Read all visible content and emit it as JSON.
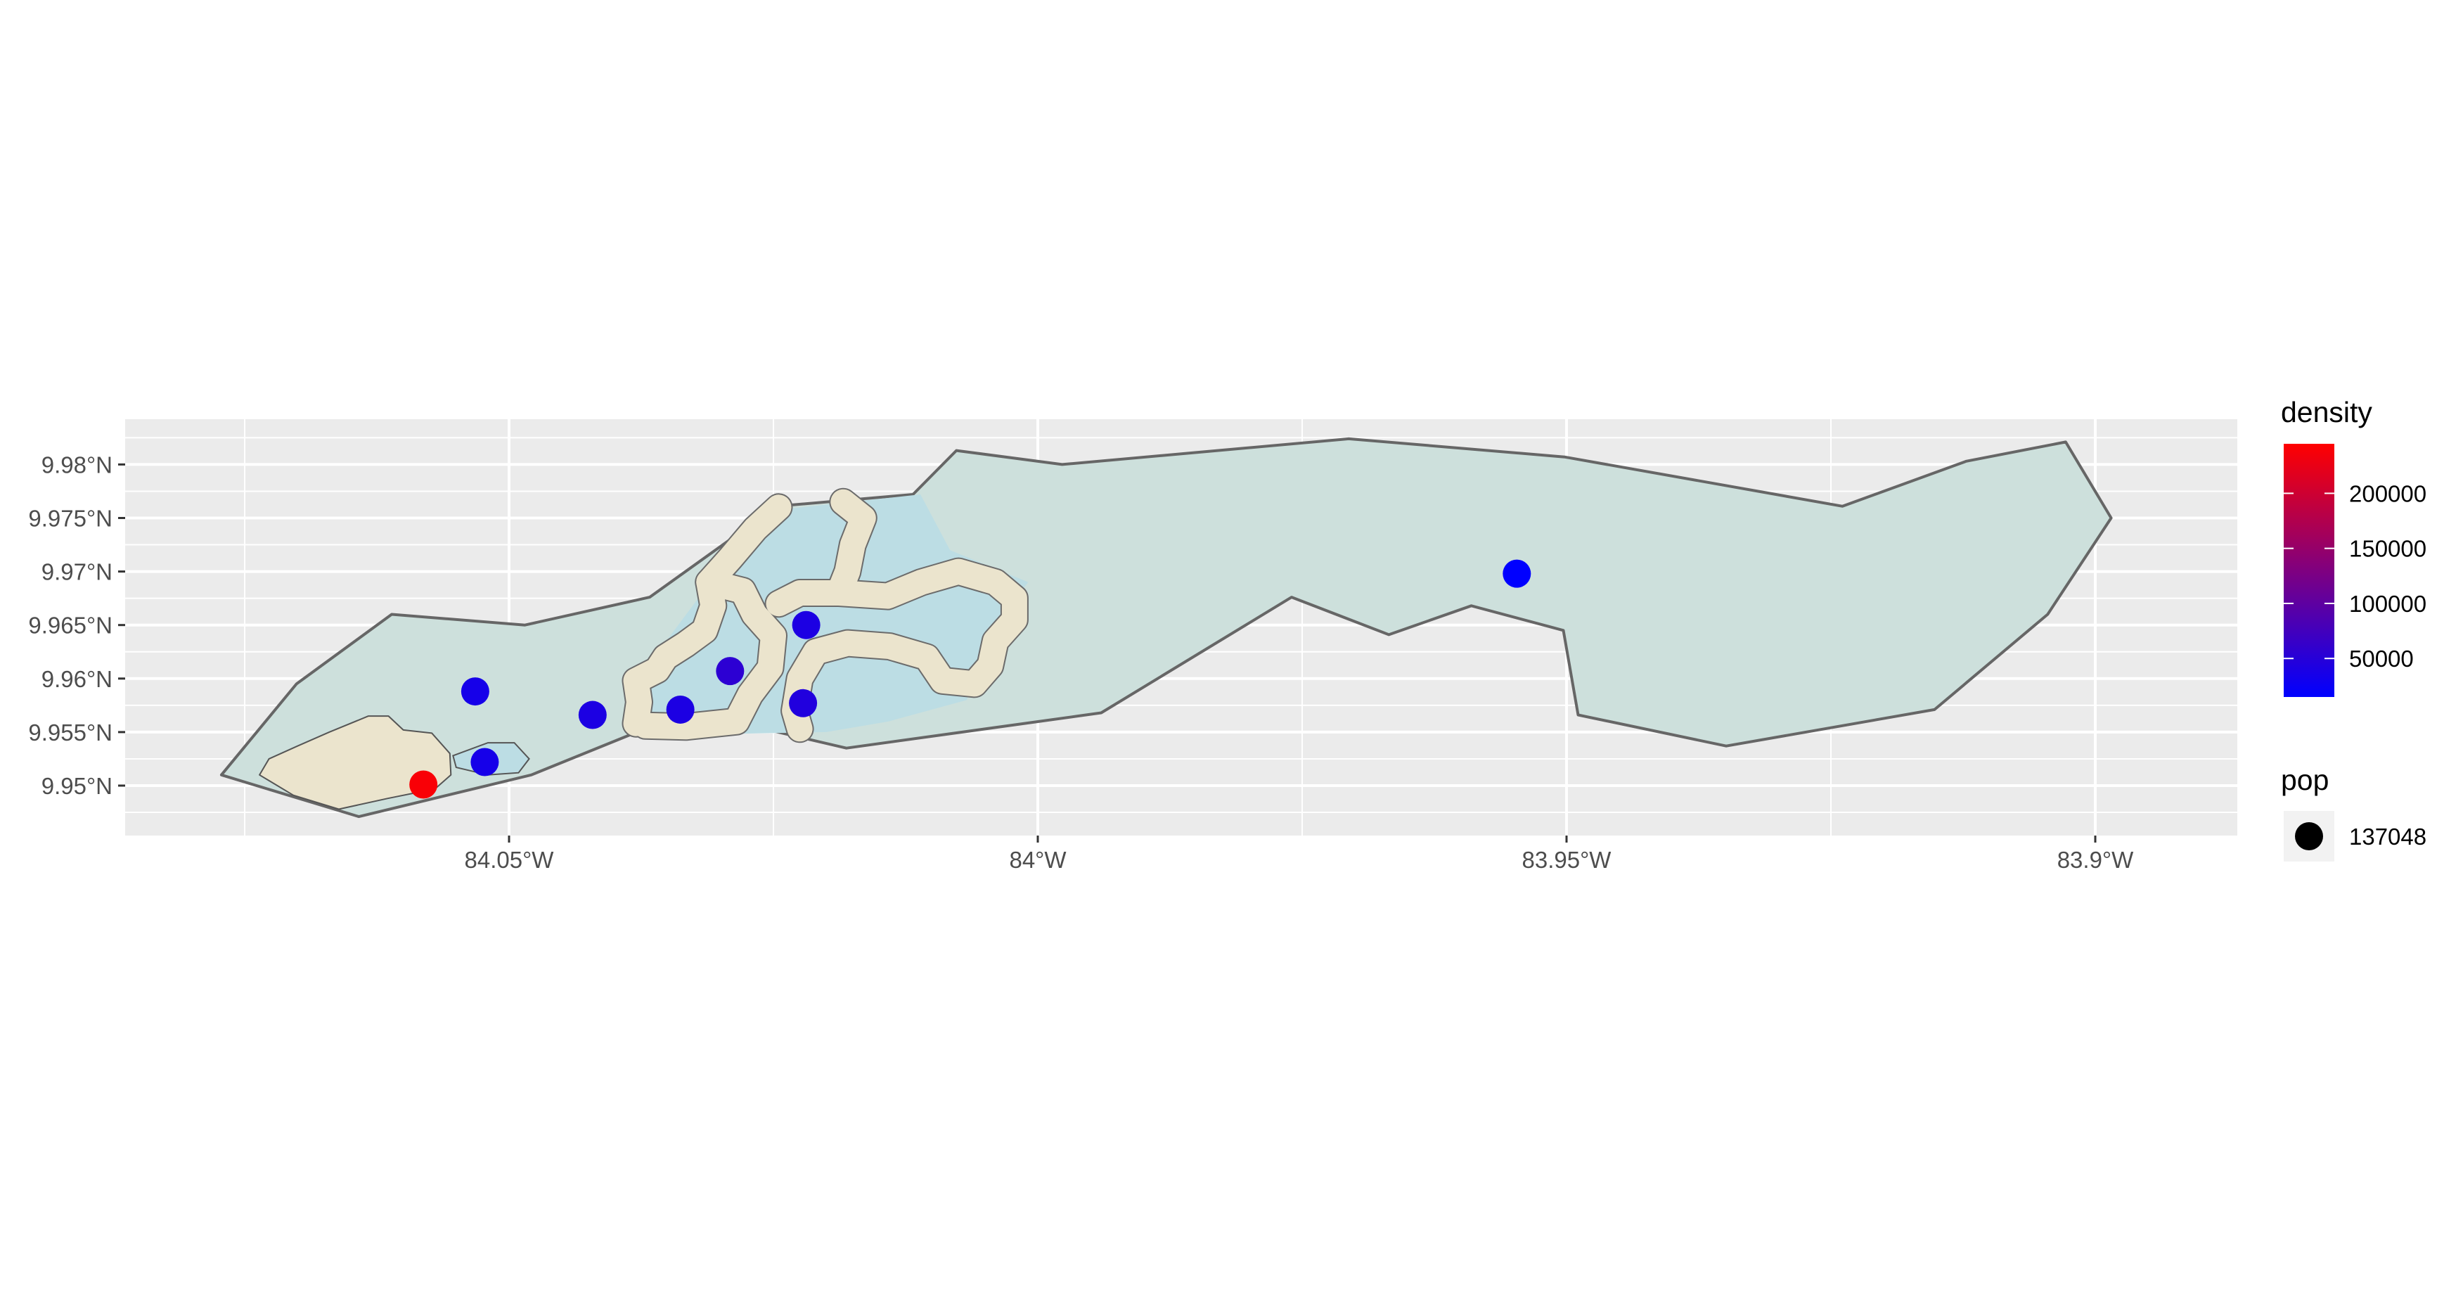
{
  "chart_data": {
    "type": "scatter",
    "subtype": "map",
    "title": "",
    "xlabel": "",
    "ylabel": "",
    "x_ticks": [
      "84.05°W",
      "84°W",
      "83.95°W",
      "83.9°W"
    ],
    "y_ticks": [
      "9.95°N",
      "9.955°N",
      "9.96°N",
      "9.965°N",
      "9.97°N",
      "9.975°N",
      "9.98°N"
    ],
    "grid": true,
    "legend_position": "right",
    "legends": {
      "density": {
        "title": "density",
        "type": "gradient",
        "colors": [
          "#0000ff",
          "#ff0000"
        ],
        "labels": [
          "50000",
          "100000",
          "150000",
          "200000"
        ],
        "label_values": [
          50000,
          100000,
          150000,
          200000
        ],
        "range": [
          15000,
          245000
        ]
      },
      "pop": {
        "title": "pop",
        "labels": [
          "137048"
        ]
      }
    },
    "colors": {
      "panel": "#ebebeb",
      "gridline": "#ffffff",
      "region_fill": "#cde0dc",
      "region_stroke": "#666666",
      "water_fill": "#bcdde4",
      "land_fill": "#ebe4cd"
    },
    "points": [
      {
        "lon": -84.0581,
        "lat": 9.9501,
        "density": 240000
      },
      {
        "lon": -84.0523,
        "lat": 9.9522,
        "density": 35000
      },
      {
        "lon": -84.0532,
        "lat": 9.9588,
        "density": 35000
      },
      {
        "lon": -84.0421,
        "lat": 9.9566,
        "density": 40000
      },
      {
        "lon": -84.0338,
        "lat": 9.9571,
        "density": 40000
      },
      {
        "lon": -84.0291,
        "lat": 9.9607,
        "density": 55000
      },
      {
        "lon": -84.0222,
        "lat": 9.9577,
        "density": 45000
      },
      {
        "lon": -84.0219,
        "lat": 9.965,
        "density": 40000
      },
      {
        "lon": -83.9547,
        "lat": 9.9698,
        "density": 15000
      }
    ],
    "region_outline": [
      [
        -84.0772,
        9.951
      ],
      [
        -84.0701,
        9.9595
      ],
      [
        -84.0611,
        9.966
      ],
      [
        -84.0485,
        9.965
      ],
      [
        -84.0367,
        9.9676
      ],
      [
        -84.0247,
        9.9761
      ],
      [
        -84.0118,
        9.9772
      ],
      [
        -84.0077,
        9.9813
      ],
      [
        -83.9977,
        9.98
      ],
      [
        -83.9706,
        9.9824
      ],
      [
        -83.9502,
        9.9807
      ],
      [
        -83.9239,
        9.9761
      ],
      [
        -83.9122,
        9.9803
      ],
      [
        -83.9028,
        9.9821
      ],
      [
        -83.8985,
        9.975
      ],
      [
        -83.9045,
        9.966
      ],
      [
        -83.9152,
        9.9571
      ],
      [
        -83.9349,
        9.9537
      ],
      [
        -83.9489,
        9.9566
      ],
      [
        -83.9503,
        9.9645
      ],
      [
        -83.959,
        9.9668
      ],
      [
        -83.9668,
        9.9641
      ],
      [
        -83.976,
        9.9676
      ],
      [
        -83.994,
        9.9568
      ],
      [
        -84.0181,
        9.9535
      ],
      [
        -84.0259,
        9.9553
      ],
      [
        -84.0384,
        9.9548
      ],
      [
        -84.0479,
        9.951
      ],
      [
        -84.0642,
        9.9471
      ]
    ],
    "water_area": [
      [
        -84.0385,
        9.9552
      ],
      [
        -84.0362,
        9.9621
      ],
      [
        -84.0315,
        9.9683
      ],
      [
        -84.0261,
        9.973
      ],
      [
        -84.0242,
        9.9758
      ],
      [
        -84.0111,
        9.9772
      ],
      [
        -84.0083,
        9.972
      ],
      [
        -84.0009,
        9.969
      ],
      [
        -84.005,
        9.9638
      ],
      [
        -84.0067,
        9.958
      ],
      [
        -84.0141,
        9.956
      ],
      [
        -84.02,
        9.955
      ],
      [
        -84.0309,
        9.9548
      ]
    ],
    "water_small": [
      [
        -84.0553,
        9.9528
      ],
      [
        -84.052,
        9.954
      ],
      [
        -84.0495,
        9.954
      ],
      [
        -84.0481,
        9.9525
      ],
      [
        -84.0491,
        9.9512
      ],
      [
        -84.052,
        9.951
      ],
      [
        -84.055,
        9.9517
      ]
    ],
    "land_patch": [
      [
        -84.0736,
        9.951
      ],
      [
        -84.0727,
        9.9525
      ],
      [
        -84.07,
        9.9537
      ],
      [
        -84.067,
        9.955
      ],
      [
        -84.0633,
        9.9565
      ],
      [
        -84.0614,
        9.9565
      ],
      [
        -84.06,
        9.9552
      ],
      [
        -84.0573,
        9.9549
      ],
      [
        -84.0556,
        9.953
      ],
      [
        -84.0555,
        9.951
      ],
      [
        -84.057,
        9.9497
      ],
      [
        -84.0615,
        9.9488
      ],
      [
        -84.0661,
        9.9478
      ],
      [
        -84.0704,
        9.9491
      ]
    ],
    "land_bands": [
      [
        [
          -84.038,
          9.9558
        ],
        [
          -84.0377,
          9.9578
        ],
        [
          -84.038,
          9.9598
        ],
        [
          -84.036,
          9.9608
        ],
        [
          -84.0352,
          9.962
        ],
        [
          -84.0333,
          9.9632
        ],
        [
          -84.0315,
          9.9645
        ],
        [
          -84.0307,
          9.9668
        ],
        [
          -84.0311,
          9.969
        ],
        [
          -84.0291,
          9.9712
        ],
        [
          -84.0267,
          9.974
        ],
        [
          -84.0245,
          9.976
        ]
      ],
      [
        [
          -84.0311,
          9.969
        ],
        [
          -84.0279,
          9.9682
        ],
        [
          -84.0268,
          9.966
        ],
        [
          -84.025,
          9.964
        ],
        [
          -84.0253,
          9.961
        ],
        [
          -84.0272,
          9.9585
        ],
        [
          -84.0285,
          9.956
        ],
        [
          -84.0333,
          9.9555
        ],
        [
          -84.0371,
          9.9556
        ]
      ],
      [
        [
          -84.0184,
          9.9765
        ],
        [
          -84.0165,
          9.975
        ],
        [
          -84.0175,
          9.9725
        ],
        [
          -84.018,
          9.97
        ],
        [
          -84.0188,
          9.968
        ],
        [
          -84.0225,
          9.968
        ],
        [
          -84.0245,
          9.967
        ]
      ],
      [
        [
          -84.0188,
          9.968
        ],
        [
          -84.0142,
          9.9677
        ],
        [
          -84.011,
          9.969
        ],
        [
          -84.0075,
          9.97
        ],
        [
          -84.004,
          9.969
        ],
        [
          -84.0022,
          9.9675
        ],
        [
          -84.0022,
          9.9655
        ],
        [
          -84.004,
          9.9635
        ],
        [
          -84.0045,
          9.9612
        ],
        [
          -84.006,
          9.9595
        ],
        [
          -84.009,
          9.9598
        ],
        [
          -84.0105,
          9.962
        ],
        [
          -84.014,
          9.963
        ],
        [
          -84.018,
          9.9633
        ],
        [
          -84.021,
          9.9625
        ],
        [
          -84.0225,
          9.96
        ],
        [
          -84.023,
          9.957
        ],
        [
          -84.0225,
          9.9553
        ]
      ]
    ]
  }
}
